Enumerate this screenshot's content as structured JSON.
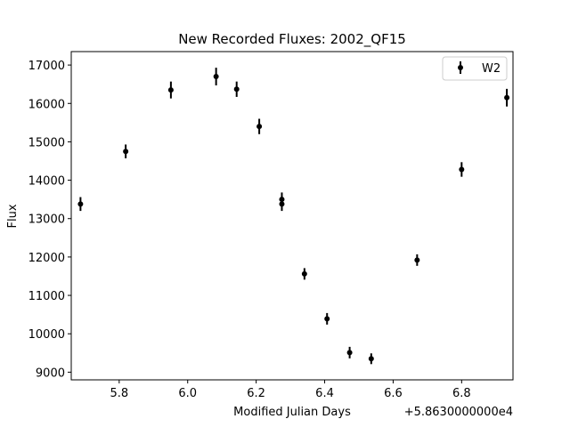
{
  "chart_data": {
    "type": "scatter",
    "title": "New Recorded Fluxes: 2002_QF15",
    "xlabel": "Modified Julian Days",
    "ylabel": "Flux",
    "x_offset_label": "+5.8630000000e4",
    "xlim": [
      58635.66,
      58636.95
    ],
    "ylim": [
      8800,
      17350
    ],
    "x_ticks": [
      58635.8,
      58636.0,
      58636.2,
      58636.4,
      58636.6,
      58636.8
    ],
    "x_tick_labels": [
      "5.8",
      "6.0",
      "6.2",
      "6.4",
      "6.6",
      "6.8"
    ],
    "y_ticks": [
      9000,
      10000,
      11000,
      12000,
      13000,
      14000,
      15000,
      16000,
      17000
    ],
    "y_tick_labels": [
      "9000",
      "10000",
      "11000",
      "12000",
      "13000",
      "14000",
      "15000",
      "16000",
      "17000"
    ],
    "grid": false,
    "legend_position": "top-right",
    "series": [
      {
        "name": "W2",
        "color": "#000000",
        "x": [
          58635.687,
          58635.819,
          58635.951,
          58636.083,
          58636.143,
          58636.209,
          58636.275,
          58636.275,
          58636.341,
          58636.407,
          58636.473,
          58636.536,
          58636.67,
          58636.8,
          58636.932
        ],
        "y": [
          13380,
          14750,
          16350,
          16700,
          16370,
          15400,
          13500,
          13380,
          11560,
          10390,
          9510,
          9350,
          11920,
          14280,
          16150
        ],
        "yerr": [
          180,
          180,
          220,
          230,
          200,
          200,
          180,
          180,
          150,
          150,
          150,
          140,
          150,
          190,
          230
        ]
      }
    ]
  }
}
